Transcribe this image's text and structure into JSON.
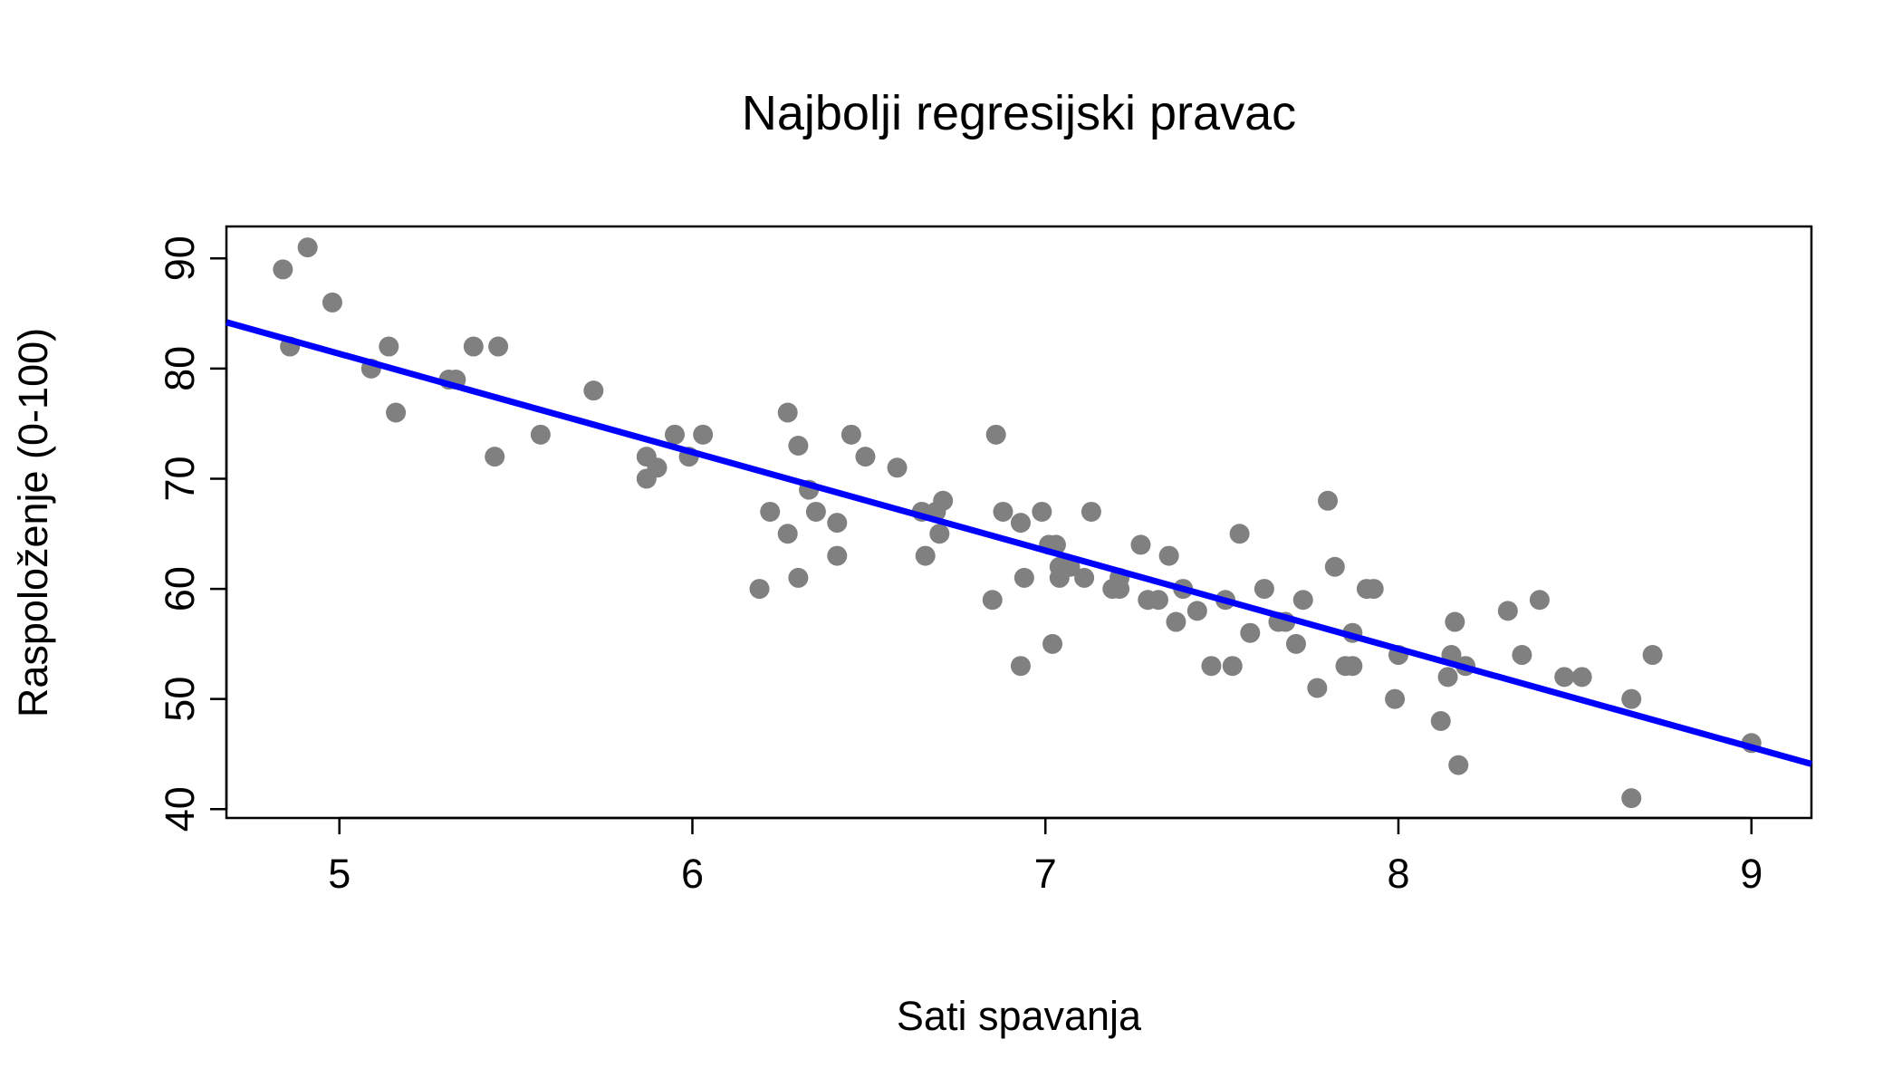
{
  "chart_data": {
    "type": "scatter",
    "title": "Najbolji regresijski pravac",
    "xlabel": "Sati spavanja",
    "ylabel": "Raspoloženje (0-100)",
    "xlim": [
      4.68,
      9.17
    ],
    "ylim": [
      39.2,
      92.9
    ],
    "xticks": [
      5,
      6,
      7,
      8,
      9
    ],
    "yticks": [
      40,
      50,
      60,
      70,
      80,
      90
    ],
    "grid": false,
    "point_color": "#808080",
    "line_color": "#0000ff",
    "points": [
      [
        4.84,
        89
      ],
      [
        4.86,
        82
      ],
      [
        4.91,
        91
      ],
      [
        4.98,
        86
      ],
      [
        5.09,
        80
      ],
      [
        5.14,
        82
      ],
      [
        5.16,
        76
      ],
      [
        5.31,
        79
      ],
      [
        5.33,
        79
      ],
      [
        5.38,
        82
      ],
      [
        5.44,
        72
      ],
      [
        5.45,
        82
      ],
      [
        5.57,
        74
      ],
      [
        5.72,
        78
      ],
      [
        5.87,
        72
      ],
      [
        5.87,
        70
      ],
      [
        5.9,
        71
      ],
      [
        5.95,
        74
      ],
      [
        5.99,
        72
      ],
      [
        6.03,
        74
      ],
      [
        6.19,
        60
      ],
      [
        6.22,
        67
      ],
      [
        6.27,
        76
      ],
      [
        6.27,
        65
      ],
      [
        6.3,
        73
      ],
      [
        6.3,
        61
      ],
      [
        6.33,
        69
      ],
      [
        6.35,
        67
      ],
      [
        6.41,
        66
      ],
      [
        6.41,
        63
      ],
      [
        6.45,
        74
      ],
      [
        6.49,
        72
      ],
      [
        6.58,
        71
      ],
      [
        6.65,
        67
      ],
      [
        6.66,
        63
      ],
      [
        6.69,
        67
      ],
      [
        6.7,
        65
      ],
      [
        6.71,
        68
      ],
      [
        6.85,
        59
      ],
      [
        6.86,
        74
      ],
      [
        6.88,
        67
      ],
      [
        6.93,
        66
      ],
      [
        6.93,
        53
      ],
      [
        6.94,
        61
      ],
      [
        6.99,
        67
      ],
      [
        7.01,
        64
      ],
      [
        7.02,
        55
      ],
      [
        7.03,
        64
      ],
      [
        7.04,
        61
      ],
      [
        7.04,
        62
      ],
      [
        7.07,
        62
      ],
      [
        7.11,
        61
      ],
      [
        7.13,
        67
      ],
      [
        7.19,
        60
      ],
      [
        7.21,
        60
      ],
      [
        7.21,
        61
      ],
      [
        7.27,
        64
      ],
      [
        7.29,
        59
      ],
      [
        7.32,
        59
      ],
      [
        7.35,
        63
      ],
      [
        7.37,
        57
      ],
      [
        7.39,
        60
      ],
      [
        7.43,
        58
      ],
      [
        7.47,
        53
      ],
      [
        7.51,
        59
      ],
      [
        7.53,
        53
      ],
      [
        7.55,
        65
      ],
      [
        7.58,
        56
      ],
      [
        7.62,
        60
      ],
      [
        7.66,
        57
      ],
      [
        7.68,
        57
      ],
      [
        7.71,
        55
      ],
      [
        7.73,
        59
      ],
      [
        7.77,
        51
      ],
      [
        7.8,
        68
      ],
      [
        7.82,
        62
      ],
      [
        7.85,
        53
      ],
      [
        7.87,
        56
      ],
      [
        7.87,
        53
      ],
      [
        7.91,
        60
      ],
      [
        7.93,
        60
      ],
      [
        7.99,
        50
      ],
      [
        8.0,
        54
      ],
      [
        8.12,
        48
      ],
      [
        8.14,
        52
      ],
      [
        8.15,
        54
      ],
      [
        8.16,
        57
      ],
      [
        8.17,
        44
      ],
      [
        8.19,
        53
      ],
      [
        8.31,
        58
      ],
      [
        8.35,
        54
      ],
      [
        8.4,
        59
      ],
      [
        8.47,
        52
      ],
      [
        8.52,
        52
      ],
      [
        8.66,
        50
      ],
      [
        8.66,
        41
      ],
      [
        8.72,
        54
      ],
      [
        9.0,
        46
      ]
    ],
    "regression_line": {
      "x": [
        4.68,
        9.17
      ],
      "y": [
        84.2,
        44.1
      ]
    }
  }
}
